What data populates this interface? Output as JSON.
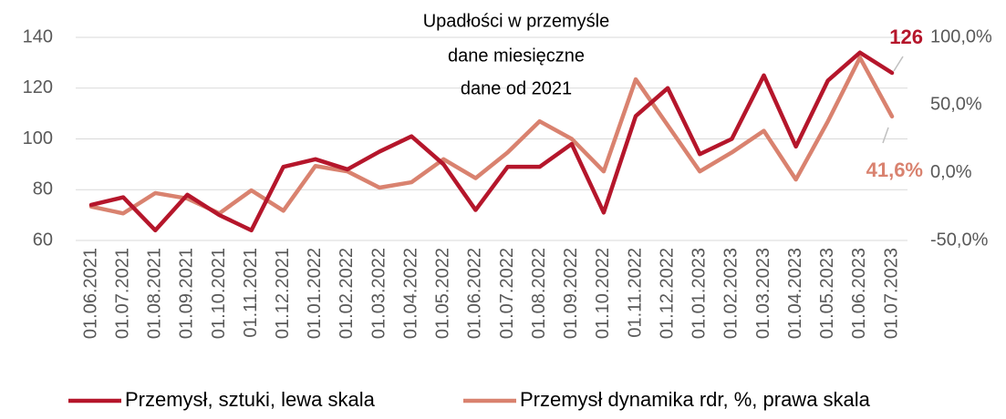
{
  "chart_data": {
    "type": "line",
    "title": "Upadłości w przemyśle",
    "subtitle": [
      "dane miesięczne",
      "dane od 2021"
    ],
    "categories": [
      "01.06.2021",
      "01.07.2021",
      "01.08.2021",
      "01.09.2021",
      "01.10.2021",
      "01.11.2021",
      "01.12.2021",
      "01.01.2022",
      "01.02.2022",
      "01.03.2022",
      "01.04.2022",
      "01.05.2022",
      "01.06.2022",
      "01.07.2022",
      "01.08.2022",
      "01.09.2022",
      "01.10.2022",
      "01.11.2022",
      "01.12.2022",
      "01.01.2023",
      "01.02.2023",
      "01.03.2023",
      "01.04.2023",
      "01.05.2023",
      "01.06.2023",
      "01.07.2023"
    ],
    "series": [
      {
        "name": "Przemysł, sztuki, lewa skala",
        "color": "#b5162b",
        "axis": "y",
        "values": [
          74,
          77,
          64,
          78,
          70,
          64,
          89,
          92,
          88,
          95,
          101,
          90,
          72,
          89,
          89,
          98,
          71,
          109,
          120,
          94,
          100,
          125,
          97,
          123,
          134,
          126
        ],
        "value_labels": [
          null,
          null,
          null,
          null,
          null,
          null,
          null,
          null,
          null,
          null,
          null,
          null,
          null,
          null,
          null,
          null,
          null,
          null,
          null,
          null,
          null,
          null,
          null,
          null,
          null,
          "126"
        ]
      },
      {
        "name": "Przemysł dynamika rdr, %, prawa skala",
        "color": "#d9826f",
        "axis": "y2",
        "values": [
          -25,
          -30,
          -15,
          -19,
          -30,
          -13,
          -28,
          5,
          1,
          -11,
          -7,
          10,
          -4,
          15,
          38,
          25,
          1,
          69,
          35,
          1,
          15,
          31,
          -5,
          38,
          85,
          41.6
        ],
        "value_labels": [
          null,
          null,
          null,
          null,
          null,
          null,
          null,
          null,
          null,
          null,
          null,
          null,
          null,
          null,
          null,
          null,
          null,
          null,
          null,
          null,
          null,
          null,
          null,
          null,
          null,
          "41,6%"
        ]
      }
    ],
    "ylim": [
      60,
      140
    ],
    "yticks": [
      60,
      80,
      100,
      120,
      140
    ],
    "y2lim": [
      -50,
      100
    ],
    "y2ticks": [
      {
        "value": -50,
        "label": "-50,0%"
      },
      {
        "value": 0,
        "label": "0,0%"
      },
      {
        "value": 50,
        "label": "50,0%"
      },
      {
        "value": 100,
        "label": "100,0%"
      }
    ],
    "grid": true,
    "legend": "bottom"
  }
}
